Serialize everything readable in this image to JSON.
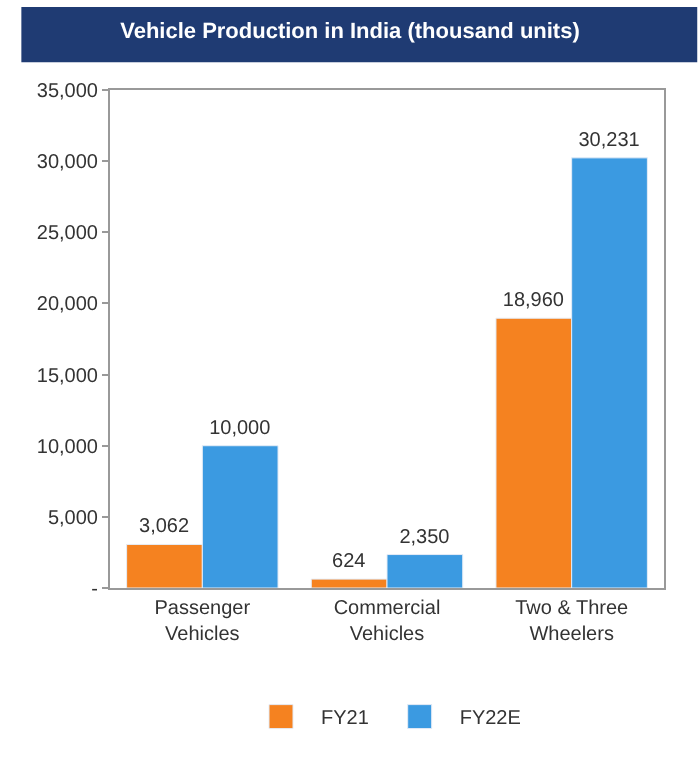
{
  "chart_data": {
    "type": "bar",
    "title": "Vehicle Production in India (thousand units)",
    "categories": [
      "Passenger Vehicles",
      "Commercial Vehicles",
      "Two & Three Wheelers"
    ],
    "series": [
      {
        "name": "FY21",
        "color": "#f58220",
        "values": [
          3062,
          624,
          18960
        ],
        "value_labels": [
          "3,062",
          "624",
          "18,960"
        ]
      },
      {
        "name": "FY22E",
        "color": "#3b9ae1",
        "values": [
          10000,
          2350,
          30231
        ],
        "value_labels": [
          "10,000",
          "2,350",
          "30,231"
        ]
      }
    ],
    "ylim": [
      0,
      35000
    ],
    "yticks": [
      {
        "value": 0,
        "label": "-"
      },
      {
        "value": 5000,
        "label": "5,000"
      },
      {
        "value": 10000,
        "label": "10,000"
      },
      {
        "value": 15000,
        "label": "15,000"
      },
      {
        "value": 20000,
        "label": "20,000"
      },
      {
        "value": 25000,
        "label": "25,000"
      },
      {
        "value": 30000,
        "label": "30,000"
      },
      {
        "value": 35000,
        "label": "35,000"
      }
    ],
    "legend": "bottom"
  }
}
